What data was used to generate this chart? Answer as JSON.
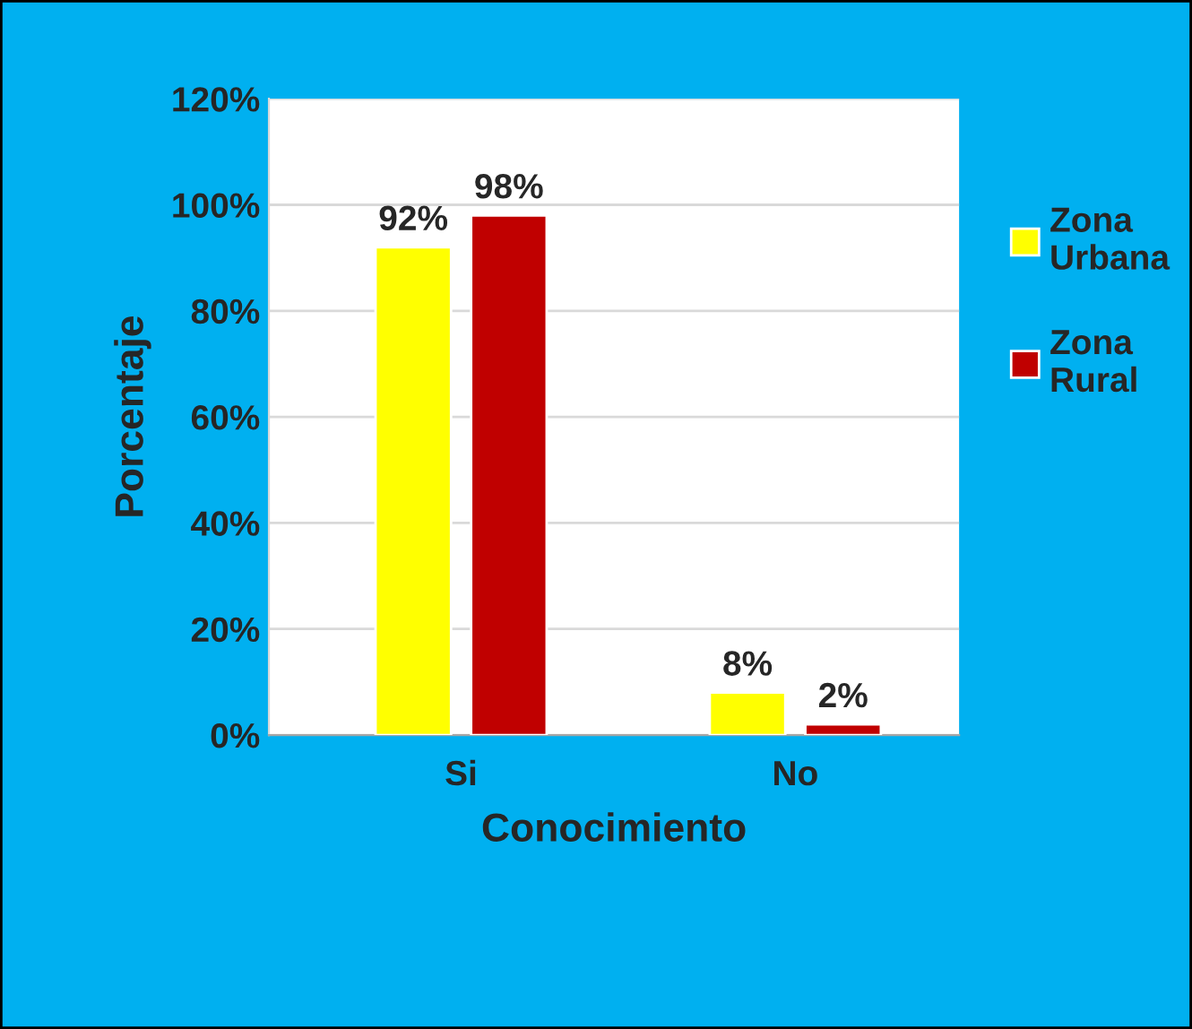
{
  "chart_data": {
    "type": "bar",
    "xlabel": "Conocimiento",
    "ylabel": "Porcentaje",
    "categories": [
      "Si",
      "No"
    ],
    "series": [
      {
        "name": "Zona Urbana",
        "color": "#ffff00",
        "values": [
          92,
          8
        ],
        "value_labels": [
          "92%",
          "8%"
        ]
      },
      {
        "name": "Zona Rural",
        "color": "#c00000",
        "values": [
          98,
          2
        ],
        "value_labels": [
          "98%",
          "2%"
        ]
      }
    ],
    "ylim": [
      0,
      120
    ],
    "yticks": [
      {
        "value": 0,
        "label": "0%"
      },
      {
        "value": 20,
        "label": "20%"
      },
      {
        "value": 40,
        "label": "40%"
      },
      {
        "value": 60,
        "label": "60%"
      },
      {
        "value": 80,
        "label": "80%"
      },
      {
        "value": 100,
        "label": "100%"
      },
      {
        "value": 120,
        "label": "120%"
      }
    ],
    "grid": "y",
    "legend": "right"
  }
}
